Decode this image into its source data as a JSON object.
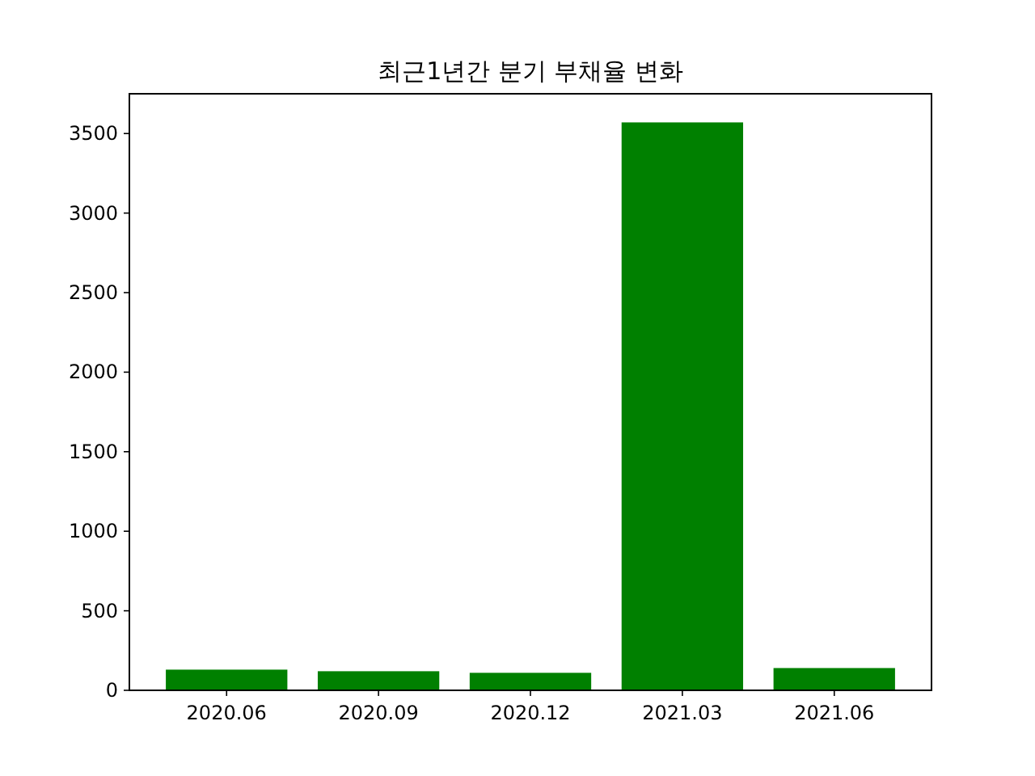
{
  "chart_data": {
    "type": "bar",
    "title": "최근1년간 분기 부채율 변화",
    "categories": [
      "2020.06",
      "2020.09",
      "2020.12",
      "2021.03",
      "2021.06"
    ],
    "values": [
      130,
      120,
      110,
      3570,
      140
    ],
    "color": "#008000",
    "ylim": [
      0,
      3750
    ],
    "yticks": [
      0,
      500,
      1000,
      1500,
      2000,
      2500,
      3000,
      3500
    ],
    "grid": false
  }
}
